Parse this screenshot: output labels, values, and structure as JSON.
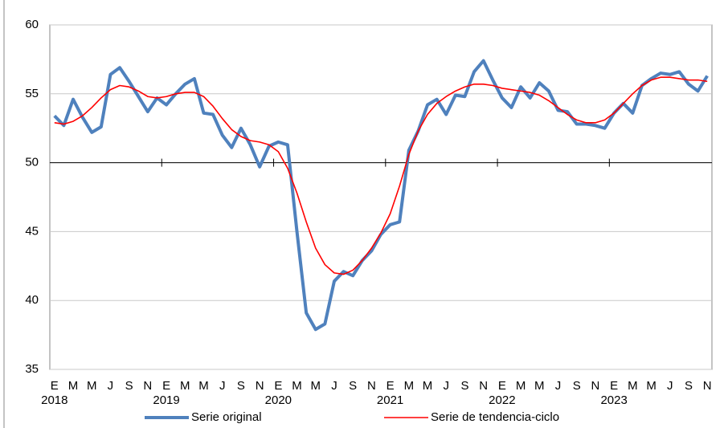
{
  "chart_data": {
    "type": "line",
    "categories": [
      "E",
      null,
      "M",
      null,
      "M",
      null,
      "J",
      null,
      "S",
      null,
      "N",
      null,
      "E",
      null,
      "M",
      null,
      "M",
      null,
      "J",
      null,
      "S",
      null,
      "N",
      null,
      "E",
      null,
      "M",
      null,
      "M",
      null,
      "J",
      null,
      "S",
      null,
      "N",
      null,
      "E",
      null,
      "M",
      null,
      "M",
      null,
      "J",
      null,
      "S",
      null,
      "N",
      null,
      "E",
      null,
      "M",
      null,
      "M",
      null,
      "J",
      null,
      "S",
      null,
      "N",
      null,
      "E",
      null,
      "M",
      null,
      "M",
      null,
      "J",
      null,
      "S",
      null,
      "N"
    ],
    "category_years": [
      "2018",
      null,
      null,
      null,
      null,
      null,
      null,
      null,
      null,
      null,
      null,
      null,
      "2019",
      null,
      null,
      null,
      null,
      null,
      null,
      null,
      null,
      null,
      null,
      null,
      "2020",
      null,
      null,
      null,
      null,
      null,
      null,
      null,
      null,
      null,
      null,
      null,
      "2021",
      null,
      null,
      null,
      null,
      null,
      null,
      null,
      null,
      null,
      null,
      null,
      "2022",
      null,
      null,
      null,
      null,
      null,
      null,
      null,
      null,
      null,
      null,
      null,
      "2023",
      null,
      null,
      null,
      null,
      null,
      null,
      null,
      null,
      null,
      null
    ],
    "series": [
      {
        "name": "Serie original",
        "color": "#4f81bd",
        "values": [
          53.4,
          52.7,
          54.6,
          53.3,
          52.2,
          52.6,
          56.4,
          56.9,
          55.9,
          54.8,
          53.7,
          54.7,
          54.2,
          55.0,
          55.7,
          56.1,
          53.6,
          53.5,
          52.0,
          51.1,
          52.5,
          51.3,
          49.7,
          51.2,
          51.5,
          51.3,
          45.0,
          39.1,
          37.9,
          38.3,
          41.4,
          42.1,
          41.8,
          42.9,
          43.6,
          44.8,
          45.5,
          45.7,
          50.9,
          52.3,
          54.2,
          54.6,
          53.5,
          54.9,
          54.8,
          56.6,
          57.4,
          56.0,
          54.7,
          54.0,
          55.5,
          54.7,
          55.8,
          55.2,
          53.8,
          53.7,
          52.8,
          52.8,
          52.7,
          52.5,
          53.6,
          54.3,
          53.6,
          55.6,
          56.1,
          56.5,
          56.4,
          56.6,
          55.7,
          55.2,
          56.3
        ]
      },
      {
        "name": "Serie de tendencia-ciclo",
        "color": "#ff0000",
        "values": [
          52.9,
          52.8,
          53.0,
          53.4,
          54.0,
          54.7,
          55.3,
          55.6,
          55.5,
          55.2,
          54.8,
          54.7,
          54.8,
          55.0,
          55.1,
          55.1,
          54.8,
          54.1,
          53.2,
          52.4,
          51.9,
          51.6,
          51.5,
          51.3,
          50.8,
          49.6,
          47.8,
          45.7,
          43.8,
          42.6,
          42.0,
          41.9,
          42.2,
          42.9,
          43.8,
          44.9,
          46.3,
          48.3,
          50.6,
          52.3,
          53.5,
          54.3,
          54.8,
          55.2,
          55.5,
          55.7,
          55.7,
          55.6,
          55.4,
          55.3,
          55.2,
          55.1,
          54.9,
          54.5,
          54.0,
          53.5,
          53.1,
          52.9,
          52.9,
          53.1,
          53.6,
          54.3,
          55.0,
          55.6,
          56.0,
          56.2,
          56.2,
          56.1,
          56.0,
          56.0,
          55.9
        ]
      }
    ],
    "ylim": [
      35,
      60
    ],
    "yticks": [
      35,
      40,
      45,
      50,
      55,
      60
    ],
    "x_axis_crossing": 50,
    "grid": true,
    "legend": "bottom"
  }
}
